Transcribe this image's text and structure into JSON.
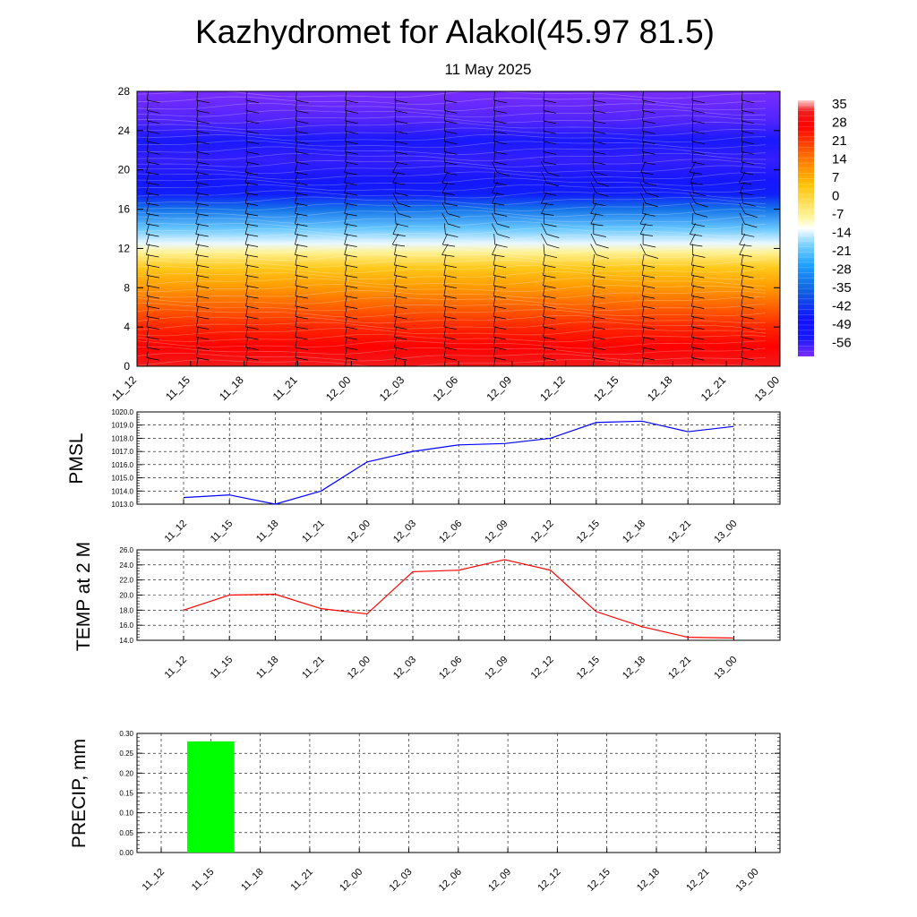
{
  "title": "Kazhydromet for Alakol(45.97 81.5)",
  "subtitle": "11 May 2025",
  "time_labels": [
    "11_12",
    "11_15",
    "11_18",
    "11_21",
    "12_00",
    "12_03",
    "12_06",
    "12_09",
    "12_12",
    "12_15",
    "12_18",
    "12_21",
    "13_00"
  ],
  "chart_data": [
    {
      "type": "heatmap",
      "y_ticks": [
        0,
        4,
        8,
        12,
        16,
        20,
        24,
        28
      ],
      "ylim": [
        0,
        28
      ],
      "colorbar": {
        "labels": [
          "35",
          "28",
          "21",
          "14",
          "7",
          "0",
          "-7",
          "-14",
          "-21",
          "-28",
          "-35",
          "-42",
          "-49",
          "-56"
        ],
        "stops": [
          {
            "v": 35,
            "color": "#ffd0d0"
          },
          {
            "v": 31,
            "color": "#ee2020"
          },
          {
            "v": 25,
            "color": "#ff0000"
          },
          {
            "v": 14,
            "color": "#ff6a00"
          },
          {
            "v": 3,
            "color": "#ffc000"
          },
          {
            "v": -10,
            "color": "#fff6a0"
          },
          {
            "v": -14,
            "color": "#ffffff"
          },
          {
            "v": -20,
            "color": "#7fd4ff"
          },
          {
            "v": -28,
            "color": "#1ea0ff"
          },
          {
            "v": -38,
            "color": "#1060e0"
          },
          {
            "v": -49,
            "color": "#1010ff"
          },
          {
            "v": -56,
            "color": "#1818ff"
          },
          {
            "v": -63,
            "color": "#7a2dff"
          }
        ]
      },
      "temp_profile": [
        {
          "h": 0,
          "t": 30
        },
        {
          "h": 2,
          "t": 25
        },
        {
          "h": 4,
          "t": 21
        },
        {
          "h": 6,
          "t": 15
        },
        {
          "h": 8,
          "t": 8
        },
        {
          "h": 10,
          "t": 1
        },
        {
          "h": 11.6,
          "t": -9
        },
        {
          "h": 12.5,
          "t": -15
        },
        {
          "h": 14,
          "t": -22
        },
        {
          "h": 16,
          "t": -35
        },
        {
          "h": 17.5,
          "t": -47
        },
        {
          "h": 19,
          "t": -54
        },
        {
          "h": 21,
          "t": -58
        },
        {
          "h": 23,
          "t": -56
        },
        {
          "h": 25,
          "t": -60
        },
        {
          "h": 28,
          "t": -63
        }
      ]
    },
    {
      "type": "line",
      "ylabel": "PMSL",
      "ylim": [
        1013,
        1020
      ],
      "y_ticks": [
        "1013.0",
        "1014.0",
        "1015.0",
        "1016.0",
        "1017.0",
        "1018.0",
        "1019.0",
        "1020.0"
      ],
      "series": [
        {
          "color": "#0000ff",
          "values": [
            1013.5,
            1013.7,
            1013.0,
            1014.0,
            1016.2,
            1017.0,
            1017.5,
            1017.6,
            1018.0,
            1019.2,
            1019.3,
            1018.5,
            1018.9
          ]
        }
      ]
    },
    {
      "type": "line",
      "ylabel": "TEMP at 2 M",
      "ylim": [
        14,
        26
      ],
      "y_ticks": [
        "14.0",
        "16.0",
        "18.0",
        "20.0",
        "22.0",
        "24.0",
        "26.0"
      ],
      "series": [
        {
          "color": "#ff0000",
          "values": [
            18.0,
            20.0,
            20.1,
            18.2,
            17.5,
            23.1,
            23.3,
            24.7,
            23.3,
            17.8,
            15.8,
            14.4,
            14.3
          ]
        }
      ]
    },
    {
      "type": "bar",
      "ylabel": "PRECIP, mm",
      "ylim": [
        0,
        0.3
      ],
      "y_ticks": [
        "0.00",
        "0.05",
        "0.10",
        "0.15",
        "0.20",
        "0.25",
        "0.30"
      ],
      "series": [
        {
          "color": "#00ff00",
          "values": [
            0,
            0.28,
            0,
            0,
            0,
            0,
            0,
            0,
            0,
            0,
            0,
            0,
            0
          ]
        }
      ]
    }
  ]
}
